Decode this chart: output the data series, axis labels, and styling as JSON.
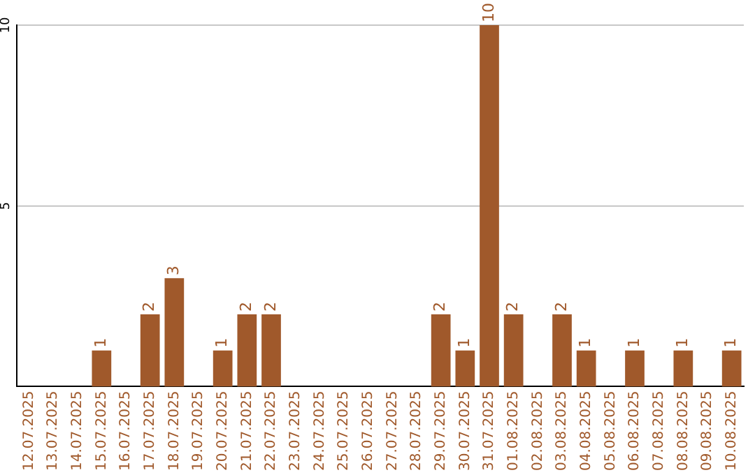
{
  "chart_data": {
    "type": "bar",
    "categories": [
      "12.07.2025",
      "13.07.2025",
      "14.07.2025",
      "15.07.2025",
      "16.07.2025",
      "17.07.2025",
      "18.07.2025",
      "19.07.2025",
      "20.07.2025",
      "21.07.2025",
      "22.07.2025",
      "23.07.2025",
      "24.07.2025",
      "25.07.2025",
      "26.07.2025",
      "27.07.2025",
      "28.07.2025",
      "29.07.2025",
      "30.07.2025",
      "31.07.2025",
      "01.08.2025",
      "02.08.2025",
      "03.08.2025",
      "04.08.2025",
      "05.08.2025",
      "06.08.2025",
      "07.08.2025",
      "08.08.2025",
      "09.08.2025",
      "10.08.2025"
    ],
    "values": [
      0,
      0,
      0,
      1,
      0,
      2,
      3,
      0,
      1,
      2,
      2,
      0,
      0,
      0,
      0,
      0,
      0,
      2,
      1,
      10,
      2,
      0,
      2,
      1,
      0,
      1,
      0,
      1,
      0,
      1
    ],
    "value_labels": [
      null,
      null,
      null,
      "1",
      null,
      "2",
      "3",
      null,
      "1",
      "2",
      "2",
      null,
      null,
      null,
      null,
      null,
      null,
      "2",
      "1",
      "10",
      "2",
      null,
      "2",
      "1",
      null,
      "1",
      null,
      "1",
      null,
      "1"
    ],
    "color": "#a0592b",
    "ylim": [
      0,
      10
    ],
    "yticks": [
      5,
      10
    ],
    "grid": "y",
    "legend": false
  }
}
